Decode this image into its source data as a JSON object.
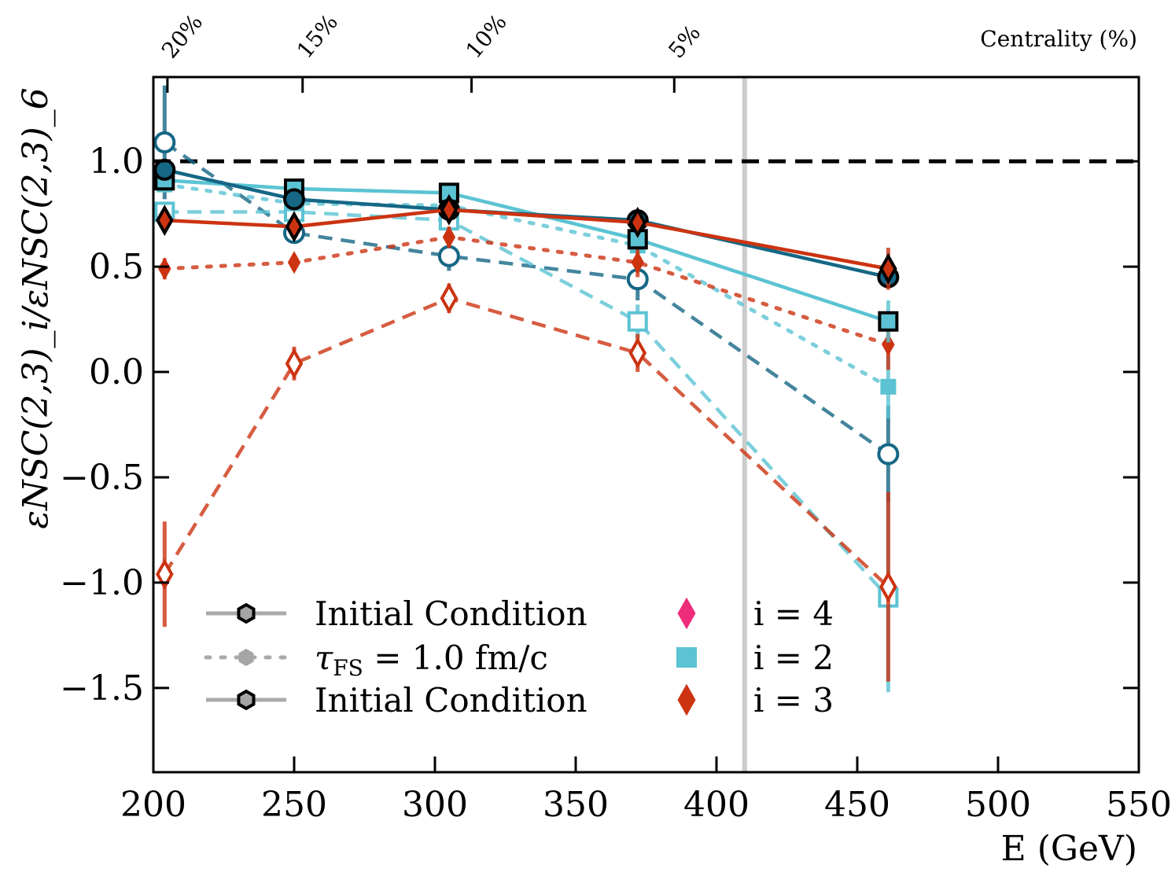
{
  "chart_data": {
    "type": "line",
    "title": "",
    "xlabel": "E (GeV)",
    "ylabel": "εNSC(2,3)_i/εNSC(2,3)_6",
    "xlim": [
      200,
      550
    ],
    "ylim": [
      -1.9,
      1.4
    ],
    "xticks": [
      200,
      250,
      300,
      350,
      400,
      450,
      500,
      550
    ],
    "xtick_labels": [
      "200",
      "250",
      "300",
      "350",
      "400",
      "450",
      "500",
      "550"
    ],
    "yticks": [
      -1.5,
      -1.0,
      -0.5,
      0.0,
      0.5,
      1.0
    ],
    "ytick_labels": [
      "−1.5",
      "−1.0",
      "−0.5",
      "0.0",
      "0.5",
      "1.0"
    ],
    "top_axis": {
      "label": "Centrality (%)",
      "ticks": [
        {
          "x": 205,
          "label": "20%"
        },
        {
          "x": 253,
          "label": "15%"
        },
        {
          "x": 313,
          "label": "10%"
        },
        {
          "x": 385,
          "label": "5%"
        }
      ]
    },
    "reference_line_y": 1.0,
    "vertical_line_x": 410,
    "series": [
      {
        "color": "#156785",
        "line": "solid",
        "marker": "circle",
        "filled": true,
        "x": [
          204,
          250,
          305,
          372,
          461
        ],
        "y": [
          0.96,
          0.82,
          0.77,
          0.72,
          0.45
        ],
        "err": [
          0.03,
          0.03,
          0.03,
          0.03,
          0.03
        ]
      },
      {
        "color": "#156785",
        "line": "dashed",
        "marker": "circle",
        "filled": false,
        "x": [
          204,
          250,
          305,
          372,
          461
        ],
        "y": [
          1.09,
          0.66,
          0.55,
          0.44,
          -0.39
        ],
        "err": [
          0.27,
          0.04,
          0.07,
          0.1,
          0.23
        ]
      },
      {
        "color": "#5bc3d3",
        "line": "solid",
        "marker": "square",
        "filled": true,
        "x": [
          204,
          250,
          305,
          372,
          461
        ],
        "y": [
          0.91,
          0.87,
          0.85,
          0.63,
          0.24
        ],
        "err": [
          0.02,
          0.02,
          0.02,
          0.04,
          0.1
        ]
      },
      {
        "color": "#5bc3d3",
        "line": "dotted",
        "marker": "square",
        "filled": true,
        "x": [
          204,
          250,
          305,
          372,
          461
        ],
        "y": [
          0.89,
          0.8,
          0.79,
          0.6,
          -0.07
        ],
        "err": [
          0.02,
          0.02,
          0.02,
          0.05,
          0.15
        ]
      },
      {
        "color": "#5bc3d3",
        "line": "dashed",
        "marker": "square",
        "filled": false,
        "x": [
          204,
          250,
          305,
          372,
          461
        ],
        "y": [
          0.76,
          0.76,
          0.72,
          0.24,
          -1.07
        ],
        "err": [
          0.03,
          0.03,
          0.04,
          0.08,
          0.45
        ]
      },
      {
        "color": "#cc3311",
        "line": "solid",
        "marker": "diamond",
        "filled": true,
        "x": [
          204,
          250,
          305,
          372,
          461
        ],
        "y": [
          0.72,
          0.69,
          0.77,
          0.71,
          0.49
        ],
        "err": [
          0.03,
          0.03,
          0.03,
          0.03,
          0.1
        ]
      },
      {
        "color": "#cc3311",
        "line": "dotted",
        "marker": "diamond",
        "filled": true,
        "x": [
          204,
          250,
          305,
          372,
          461
        ],
        "y": [
          0.49,
          0.52,
          0.64,
          0.52,
          0.13
        ],
        "err": [
          0.05,
          0.04,
          0.05,
          0.07,
          0.12
        ]
      },
      {
        "color": "#cc3311",
        "line": "dashed",
        "marker": "diamond",
        "filled": false,
        "x": [
          204,
          250,
          305,
          372,
          461
        ],
        "y": [
          -0.96,
          0.04,
          0.35,
          0.09,
          -1.02
        ],
        "err": [
          0.25,
          0.08,
          0.07,
          0.09,
          0.45
        ]
      }
    ],
    "legend": {
      "placement": "lower-left",
      "styles": [
        {
          "label": "Initial Condition",
          "line": "solid"
        },
        {
          "label": "τ",
          "sub": "FS",
          "suffix": " = 1.0 fm/c",
          "line": "dotted"
        },
        {
          "label": "Initial Condition",
          "line": "solid"
        }
      ],
      "orders": [
        {
          "label": "i = 4",
          "color": "#ee2c7a",
          "marker": "diamond"
        },
        {
          "label": "i = 2",
          "color": "#5bc3d3",
          "marker": "square"
        },
        {
          "label": "i = 3",
          "color": "#cc3311",
          "marker": "diamond"
        }
      ]
    }
  }
}
